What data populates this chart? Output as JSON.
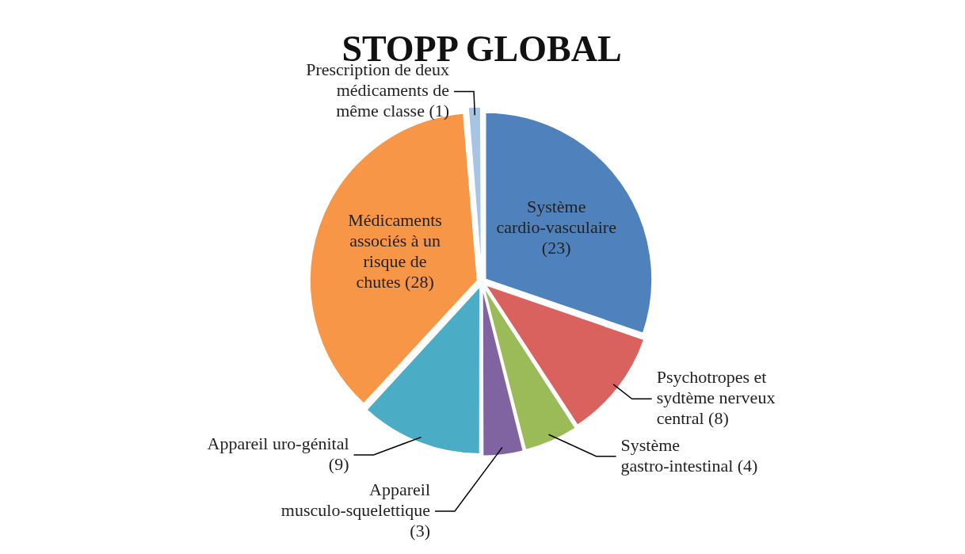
{
  "chart_data": {
    "type": "pie",
    "title": "STOPP GLOBAL",
    "categories": [
      "Système cardio-vasculaire",
      "Psychotropes et sydtème nerveux central",
      "Système gastro-intestinal",
      "Appareil musculo-squelettique",
      "Appareil uro-génital",
      "Médicaments associés à un risque de chutes",
      "Prescription de deux médicaments de même classe"
    ],
    "values": [
      23,
      8,
      4,
      3,
      9,
      28,
      1
    ],
    "colors": [
      "#4f81bd",
      "#d9625f",
      "#9bbb59",
      "#8064a2",
      "#4bacc6",
      "#f79646",
      "#a7c4e5"
    ],
    "value_labels": [
      "(23)",
      "(8)",
      "(4)",
      "(3)",
      "(9)",
      "(28)",
      "(1)"
    ],
    "legend": false
  }
}
